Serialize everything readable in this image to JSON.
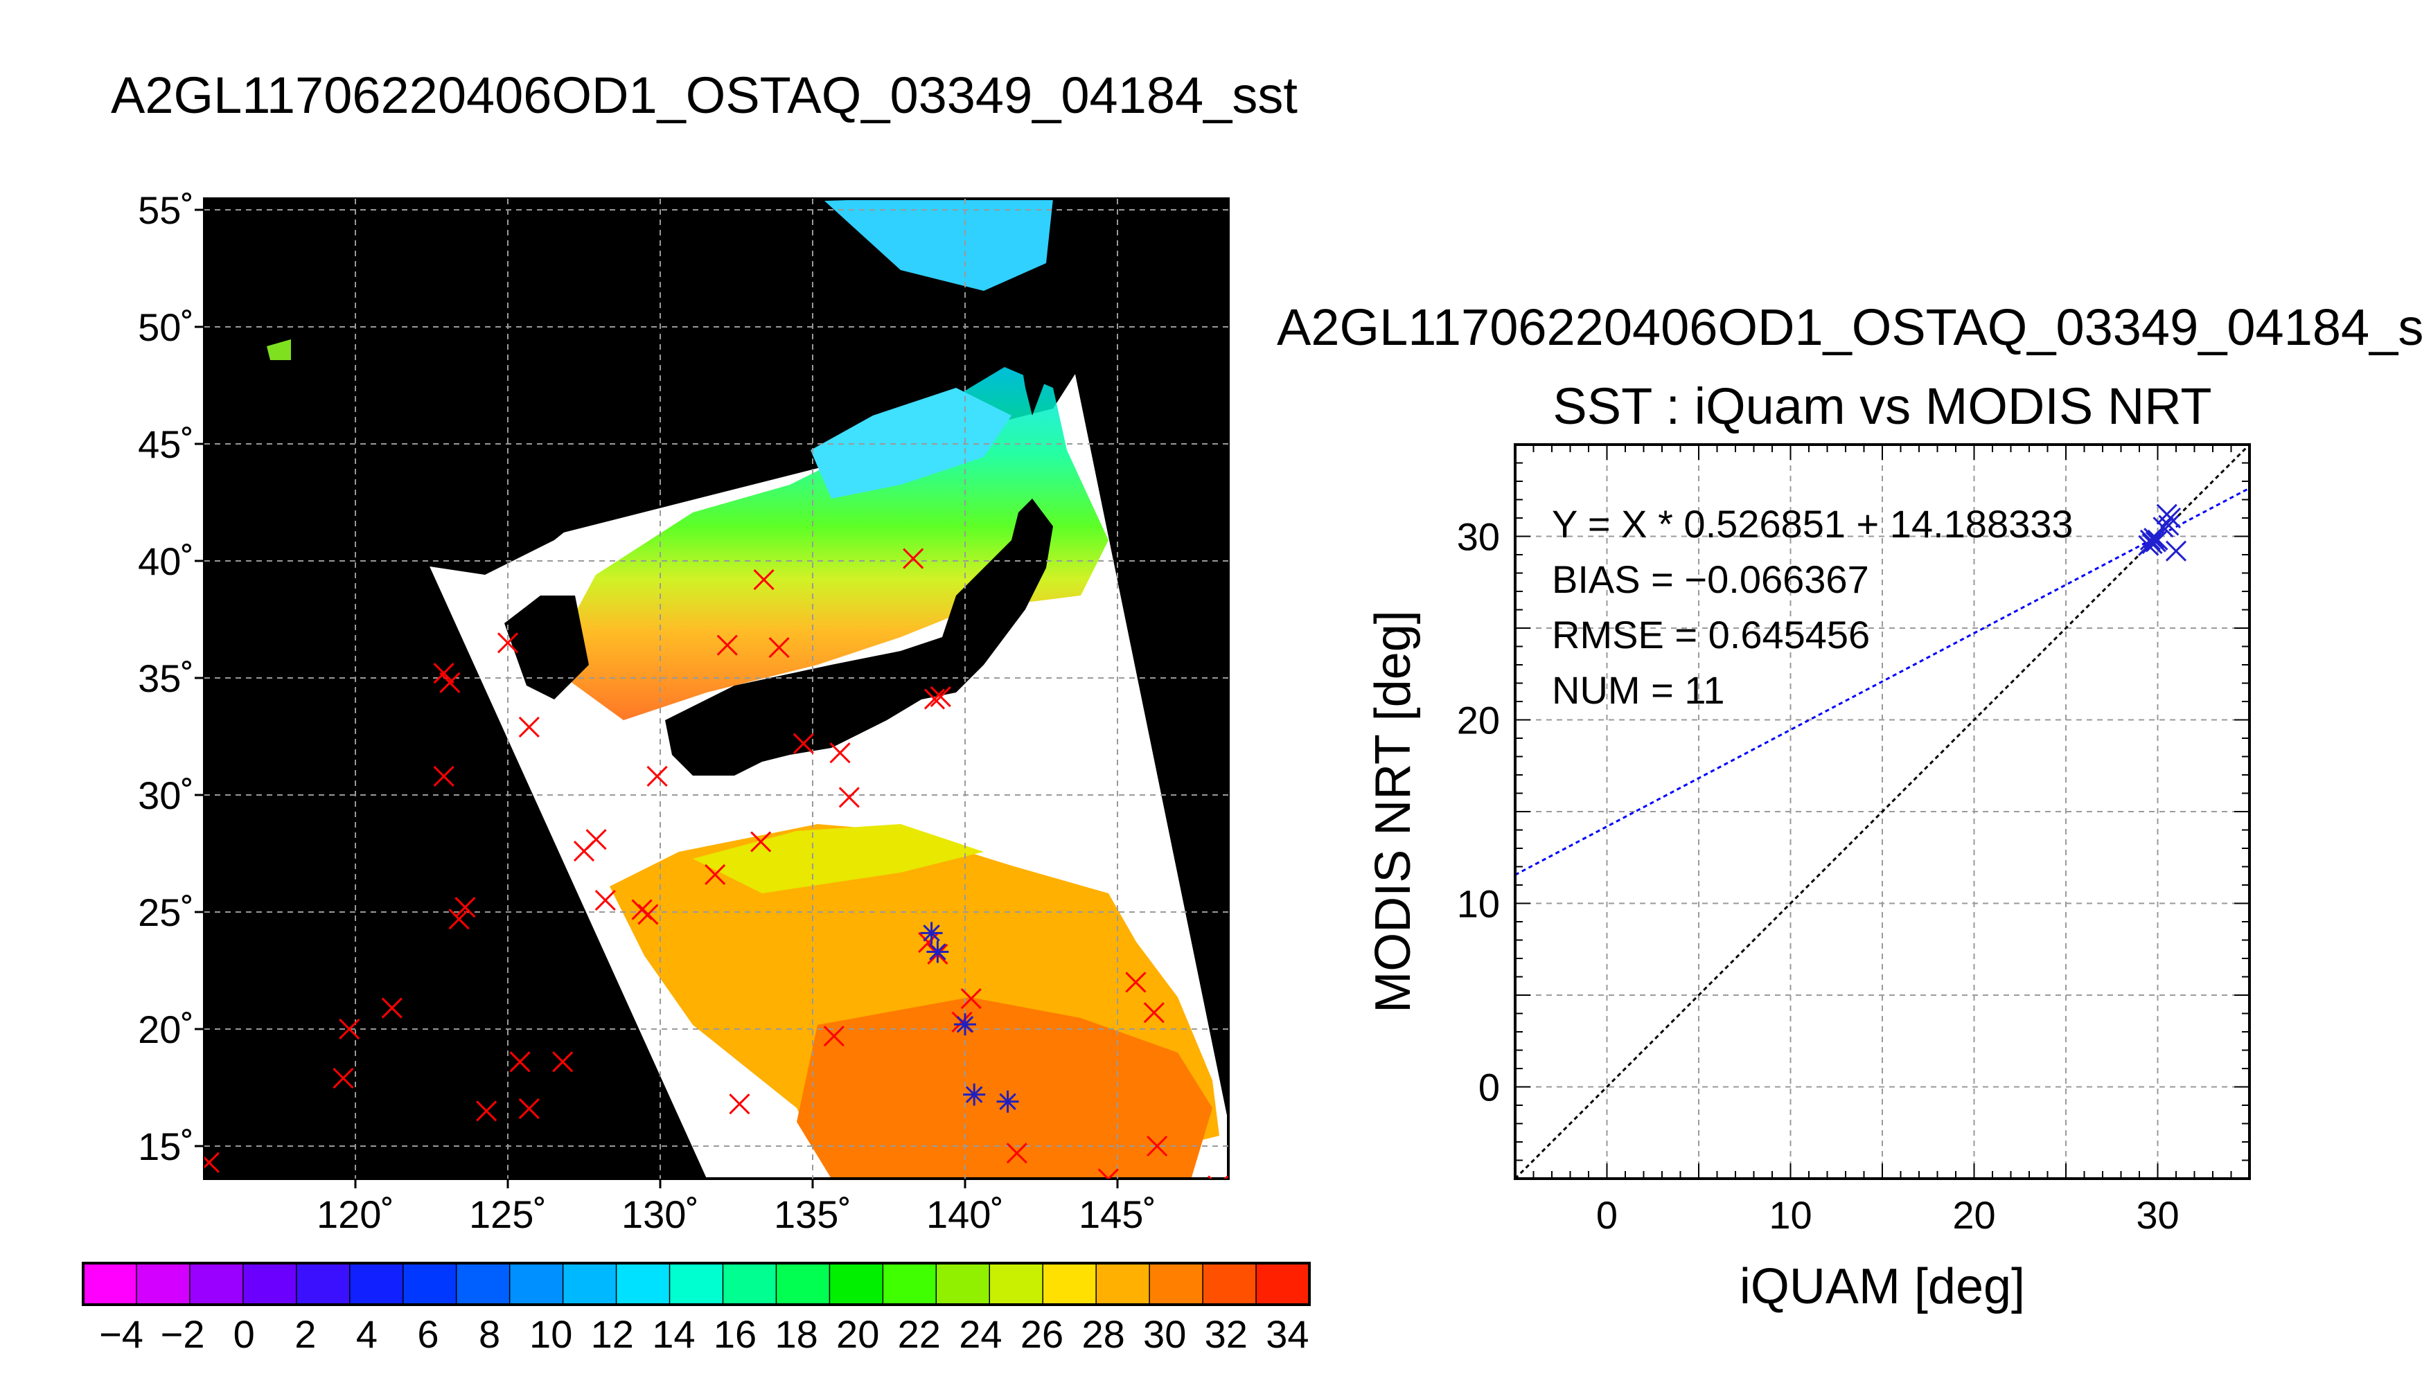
{
  "map": {
    "title": "A2GL11706220406OD1_OSTAQ_03349_04184_sst",
    "lat_ticks": [
      "55˚",
      "50˚",
      "45˚",
      "40˚",
      "35˚",
      "30˚",
      "25˚",
      "20˚",
      "15˚"
    ],
    "lon_ticks": [
      "120˚",
      "125˚",
      "130˚",
      "135˚",
      "140˚",
      "145˚"
    ],
    "land_color": "#000000",
    "cloud_color": "#ffffff",
    "iquam_marker": "red-x",
    "matchup_marker": "blue-asterisk"
  },
  "colorbar": {
    "labels": [
      "−4",
      "−2",
      "0",
      "2",
      "4",
      "6",
      "8",
      "10",
      "12",
      "14",
      "16",
      "18",
      "20",
      "22",
      "24",
      "26",
      "28",
      "30",
      "32",
      "34"
    ],
    "colors": [
      "#ff00ff",
      "#d400ff",
      "#9a00ff",
      "#6c00ff",
      "#3a10ff",
      "#1020ff",
      "#0038ff",
      "#0060ff",
      "#0090ff",
      "#00b8ff",
      "#00e0ff",
      "#00ffd0",
      "#00ff90",
      "#00ff50",
      "#00f000",
      "#40ff00",
      "#90f000",
      "#c8f000",
      "#ffe000",
      "#ffb000",
      "#ff8000",
      "#ff5000",
      "#ff2000"
    ]
  },
  "chart_data": {
    "type": "scatter",
    "title": "A2GL11706220406OD1_OSTAQ_03349_04184_s",
    "subtitle": "SST : iQuam vs MODIS NRT",
    "xlabel": "iQUAM [deg]",
    "ylabel": "MODIS NRT [deg]",
    "xlim": [
      -5,
      35
    ],
    "ylim": [
      -5,
      35
    ],
    "x_ticks": [
      "0",
      "10",
      "20",
      "30"
    ],
    "y_ticks": [
      "0",
      "10",
      "20",
      "30"
    ],
    "grid": true,
    "series": [
      {
        "marker_color": "#2020d0",
        "points": [
          {
            "x": 29.5,
            "y": 29.5
          },
          {
            "x": 29.6,
            "y": 29.8
          },
          {
            "x": 29.7,
            "y": 29.6
          },
          {
            "x": 29.8,
            "y": 29.9
          },
          {
            "x": 29.9,
            "y": 29.7
          },
          {
            "x": 30.0,
            "y": 29.8
          },
          {
            "x": 30.3,
            "y": 30.5
          },
          {
            "x": 30.5,
            "y": 31.2
          },
          {
            "x": 30.7,
            "y": 31.0
          },
          {
            "x": 31.0,
            "y": 29.2
          },
          {
            "x": 30.6,
            "y": 30.6
          }
        ]
      }
    ],
    "fit_line": {
      "slope": 0.526851,
      "intercept": 14.188333,
      "color": "#0000ff"
    },
    "identity_line": {
      "color": "#000000"
    },
    "stats": {
      "equation": "Y = X * 0.526851 + 14.188333",
      "bias": "BIAS = −0.066367",
      "rmse": "RMSE = 0.645456",
      "num": "NUM = 11"
    }
  }
}
